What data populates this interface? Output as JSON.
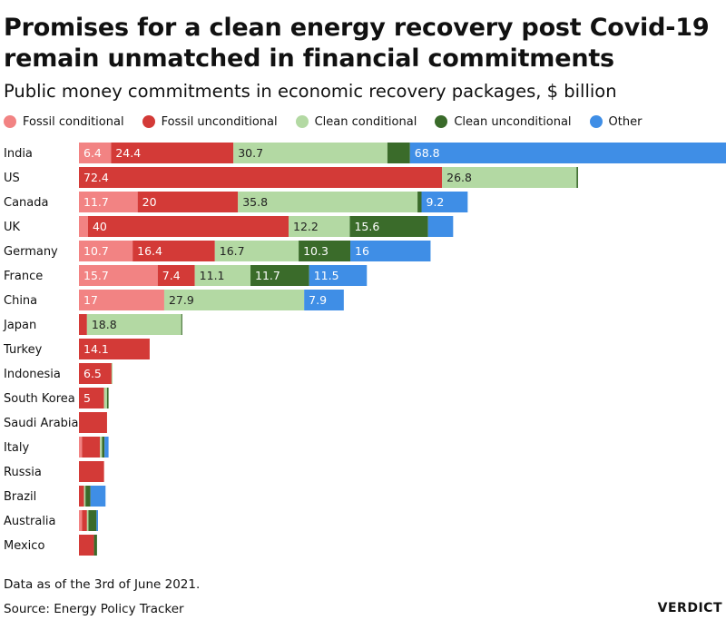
{
  "header": {
    "title": "Promises for a clean energy recovery post Covid-19 remain unmatched in financial commitments",
    "subtitle": "Public money commitments in economic recovery packages, $ billion"
  },
  "legend": [
    {
      "label": "Fossil conditional",
      "color": "#f28383"
    },
    {
      "label": "Fossil unconditional",
      "color": "#d33a37"
    },
    {
      "label": "Clean conditional",
      "color": "#b3d9a3"
    },
    {
      "label": "Clean unconditional",
      "color": "#3a6b2a"
    },
    {
      "label": "Other",
      "color": "#3f8ee6"
    }
  ],
  "footer": {
    "note": "Data as of the 3rd of June 2021.",
    "source": "Source: Energy Policy Tracker",
    "brand": "VERDICT"
  },
  "chart_data": {
    "type": "bar",
    "orientation": "horizontal",
    "stacked": true,
    "categories": [
      "India",
      "US",
      "Canada",
      "UK",
      "Germany",
      "France",
      "China",
      "Japan",
      "Turkey",
      "Indonesia",
      "South Korea",
      "Saudi Arabia",
      "Italy",
      "Russia",
      "Brazil",
      "Australia",
      "Mexico"
    ],
    "series": [
      {
        "name": "Fossil conditional",
        "color": "#f28383",
        "values": [
          6.4,
          0,
          11.7,
          1.8,
          10.7,
          15.7,
          17,
          0,
          0,
          0,
          0,
          0,
          0.6,
          0,
          0,
          0.6,
          0
        ],
        "labels": [
          "6.4",
          "",
          "11.7",
          "",
          "10.7",
          "15.7",
          "17",
          "",
          "",
          "",
          "",
          "",
          "",
          "",
          "",
          "",
          ""
        ]
      },
      {
        "name": "Fossil unconditional",
        "color": "#d33a37",
        "values": [
          24.4,
          72.4,
          20,
          40,
          16.4,
          7.4,
          0,
          1.6,
          14.1,
          6.5,
          5,
          5.6,
          3.6,
          5,
          1,
          1,
          3
        ],
        "labels": [
          "24.4",
          "72.4",
          "20",
          "40",
          "16.4",
          "7.4",
          "",
          "",
          "14.1",
          "6.5",
          "5",
          "",
          "",
          "",
          "",
          "",
          ""
        ]
      },
      {
        "name": "Clean conditional",
        "color": "#b3d9a3",
        "values": [
          30.7,
          26.8,
          35.8,
          12.2,
          16.7,
          11.1,
          27.9,
          18.8,
          0,
          0.2,
          0.6,
          0,
          0.4,
          0,
          0.3,
          0.3,
          0
        ],
        "labels": [
          "30.7",
          "26.8",
          "35.8",
          "12.2",
          "16.7",
          "11.1",
          "27.9",
          "18.8",
          "",
          "",
          "",
          "",
          "",
          "",
          "",
          "",
          ""
        ]
      },
      {
        "name": "Clean unconditional",
        "color": "#3a6b2a",
        "values": [
          4.5,
          0.3,
          0.8,
          15.6,
          10.3,
          11.7,
          0,
          0.2,
          0,
          0,
          0.3,
          0,
          0.5,
          0,
          1,
          1.6,
          0.6
        ],
        "labels": [
          "",
          "",
          "",
          "15.6",
          "10.3",
          "11.7",
          "",
          "",
          "",
          "",
          "",
          "",
          "",
          "",
          "",
          "",
          ""
        ]
      },
      {
        "name": "Other",
        "color": "#3f8ee6",
        "values": [
          68.8,
          0,
          9.2,
          5,
          16,
          11.5,
          7.9,
          0,
          0,
          0,
          0,
          0,
          0.8,
          0,
          3,
          0.3,
          0
        ],
        "labels": [
          "68.8",
          "",
          "9.2",
          "",
          "16",
          "11.5",
          "7.9",
          "",
          "",
          "",
          "",
          "",
          "",
          "",
          "",
          "",
          ""
        ]
      }
    ],
    "xlim": [
      0,
      129
    ],
    "title": "Promises for a clean energy recovery post Covid-19 remain unmatched in financial commitments",
    "subtitle": "Public money commitments in economic recovery packages, $ billion",
    "legend_position": "top-left",
    "grid": false
  }
}
